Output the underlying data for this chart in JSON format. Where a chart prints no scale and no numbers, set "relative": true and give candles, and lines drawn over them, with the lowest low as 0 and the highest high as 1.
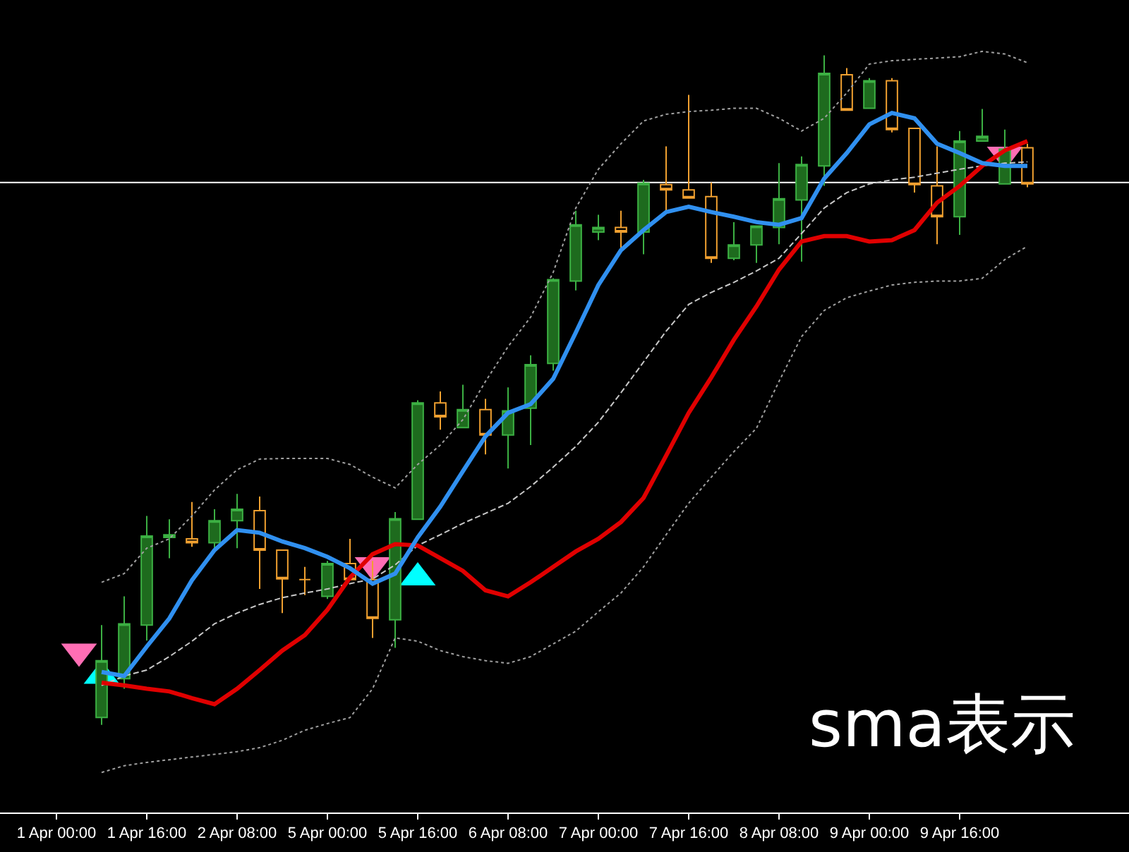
{
  "chart_data": {
    "type": "candlestick",
    "relative": true,
    "tick_labels": "x",
    "categories": [
      "1 Apr 00:00",
      null,
      null,
      null,
      "1 Apr 16:00",
      null,
      null,
      null,
      "2 Apr 08:00",
      null,
      null,
      null,
      "5 Apr 00:00",
      null,
      null,
      null,
      "5 Apr 16:00",
      null,
      null,
      null,
      "6 Apr 08:00",
      null,
      null,
      null,
      "7 Apr 00:00",
      null,
      null,
      null,
      "7 Apr 16:00",
      null,
      null,
      null,
      "8 Apr 08:00",
      null,
      null,
      null,
      "9 Apr 00:00",
      null,
      null,
      null,
      "9 Apr 16:00",
      null,
      null,
      null
    ],
    "ohlc": [
      null,
      null,
      [
        0.011,
        0.149,
        0,
        0.096
      ],
      [
        0.069,
        0.192,
        0.054,
        0.151
      ],
      [
        0.149,
        0.312,
        0.126,
        0.282
      ],
      [
        0.28,
        0.307,
        0.249,
        0.284
      ],
      [
        0.278,
        0.333,
        0.266,
        0.272
      ],
      [
        0.272,
        0.322,
        0.261,
        0.305
      ],
      [
        0.305,
        0.345,
        0.264,
        0.322
      ],
      [
        0.32,
        0.341,
        0.203,
        0.261
      ],
      [
        0.261,
        0.261,
        0.167,
        0.218
      ],
      [
        0.217,
        0.236,
        0.194,
        0.217
      ],
      [
        0.192,
        0.245,
        0.188,
        0.241
      ],
      [
        0.241,
        0.278,
        0.217,
        0.217
      ],
      [
        0.217,
        0.245,
        0.13,
        0.159
      ],
      [
        0.157,
        0.318,
        0.115,
        0.308
      ],
      [
        0.307,
        0.485,
        0.307,
        0.481
      ],
      [
        0.481,
        0.498,
        0.441,
        0.46
      ],
      [
        0.444,
        0.508,
        0.444,
        0.471
      ],
      [
        0.471,
        0.487,
        0.404,
        0.433
      ],
      [
        0.433,
        0.504,
        0.383,
        0.469
      ],
      [
        0.473,
        0.552,
        0.418,
        0.538
      ],
      [
        0.54,
        0.667,
        0.529,
        0.665
      ],
      [
        0.663,
        0.768,
        0.649,
        0.747
      ],
      [
        0.736,
        0.762,
        0.724,
        0.743
      ],
      [
        0.743,
        0.768,
        0.711,
        0.736
      ],
      [
        0.736,
        0.814,
        0.703,
        0.809
      ],
      [
        0.807,
        0.864,
        0.768,
        0.799
      ],
      [
        0.799,
        0.941,
        0.786,
        0.787
      ],
      [
        0.789,
        0.81,
        0.69,
        0.697
      ],
      [
        0.697,
        0.751,
        0.694,
        0.717
      ],
      [
        0.717,
        0.745,
        0.69,
        0.745
      ],
      [
        0.743,
        0.839,
        0.718,
        0.786
      ],
      [
        0.784,
        0.849,
        0.692,
        0.837
      ],
      [
        0.835,
        1.0,
        0.805,
        0.973
      ],
      [
        0.971,
        0.981,
        0.918,
        0.918
      ],
      [
        0.921,
        0.966,
        0.921,
        0.962
      ],
      [
        0.962,
        0.966,
        0.885,
        0.889
      ],
      [
        0.891,
        0.891,
        0.795,
        0.807
      ],
      [
        0.805,
        0.864,
        0.718,
        0.759
      ],
      [
        0.759,
        0.887,
        0.732,
        0.872
      ],
      [
        0.872,
        0.92,
        0.872,
        0.879
      ],
      [
        0.808,
        0.889,
        0.808,
        0.86
      ],
      [
        0.862,
        0.868,
        0.803,
        0.808
      ]
    ],
    "series": [
      {
        "type": "line",
        "color": "#a0a0a0",
        "line_style": "dotted",
        "values": [
          null,
          null,
          0.213,
          0.226,
          0.264,
          0.278,
          0.312,
          0.351,
          0.381,
          0.397,
          0.398,
          0.398,
          0.398,
          0.389,
          0.37,
          0.354,
          0.389,
          0.418,
          0.456,
          0.513,
          0.565,
          0.609,
          0.676,
          0.772,
          0.83,
          0.868,
          0.902,
          0.912,
          0.916,
          0.918,
          0.921,
          0.921,
          0.906,
          0.887,
          0.906,
          0.944,
          0.987,
          0.992,
          0.994,
          0.996,
          0.998,
          1.006,
          1.002,
          0.989
        ]
      },
      {
        "type": "line",
        "color": "#a0a0a0",
        "line_style": "dotted",
        "values": [
          null,
          null,
          -0.071,
          -0.061,
          -0.056,
          -0.052,
          -0.048,
          -0.044,
          -0.04,
          -0.034,
          -0.023,
          -0.008,
          0.002,
          0.011,
          0.054,
          0.13,
          0.125,
          0.111,
          0.102,
          0.096,
          0.092,
          0.102,
          0.121,
          0.14,
          0.169,
          0.197,
          0.236,
          0.284,
          0.331,
          0.37,
          0.408,
          0.443,
          0.513,
          0.58,
          0.619,
          0.638,
          0.648,
          0.657,
          0.661,
          0.663,
          0.663,
          0.667,
          0.695,
          0.715
        ]
      },
      {
        "type": "line",
        "color": "#c8c8c8",
        "line_style": "dashed",
        "values": [
          null,
          null,
          0.059,
          0.073,
          0.082,
          0.102,
          0.125,
          0.151,
          0.167,
          0.18,
          0.19,
          0.197,
          0.203,
          0.211,
          0.218,
          0.239,
          0.268,
          0.284,
          0.301,
          0.316,
          0.331,
          0.356,
          0.385,
          0.416,
          0.452,
          0.496,
          0.542,
          0.588,
          0.628,
          0.646,
          0.661,
          0.678,
          0.697,
          0.734,
          0.772,
          0.795,
          0.808,
          0.814,
          0.818,
          0.824,
          0.83,
          0.835,
          0.839,
          0.841
        ]
      },
      {
        "type": "line",
        "color": "#e00000",
        "line_style": "solid",
        "values": [
          null,
          null,
          0.063,
          0.059,
          0.054,
          0.05,
          0.04,
          0.031,
          0.054,
          0.082,
          0.111,
          0.134,
          0.172,
          0.22,
          0.255,
          0.27,
          0.268,
          0.249,
          0.23,
          0.201,
          0.192,
          0.213,
          0.236,
          0.259,
          0.278,
          0.303,
          0.339,
          0.402,
          0.466,
          0.519,
          0.575,
          0.625,
          0.68,
          0.722,
          0.73,
          0.73,
          0.722,
          0.724,
          0.739,
          0.78,
          0.805,
          0.835,
          0.858,
          0.872
        ]
      },
      {
        "type": "line",
        "color": "#3090f0",
        "line_style": "solid",
        "values": [
          null,
          null,
          0.079,
          0.073,
          0.117,
          0.159,
          0.216,
          0.261,
          0.291,
          0.287,
          0.274,
          0.264,
          0.251,
          0.234,
          0.211,
          0.226,
          0.28,
          0.326,
          0.379,
          0.431,
          0.466,
          0.479,
          0.517,
          0.586,
          0.657,
          0.709,
          0.739,
          0.766,
          0.774,
          0.766,
          0.759,
          0.751,
          0.747,
          0.757,
          0.816,
          0.854,
          0.897,
          0.914,
          0.906,
          0.868,
          0.854,
          0.839,
          0.835,
          0.835
        ]
      },
      {
        "type": "scatter",
        "color": "#00ffff",
        "marker": "triangle",
        "values": [
          null,
          null,
          0.073,
          null,
          null,
          null,
          null,
          null,
          null,
          null,
          null,
          null,
          null,
          null,
          null,
          null,
          0.22,
          null,
          null,
          null,
          null,
          null,
          null,
          null,
          null,
          null,
          null,
          null,
          null,
          null,
          null,
          null,
          null,
          null,
          null,
          null,
          null,
          null,
          null,
          null,
          null,
          null,
          null,
          null
        ]
      },
      {
        "type": "scatter",
        "color": "#ff6eb4",
        "marker": "triangle-down",
        "values": [
          null,
          0.11,
          null,
          null,
          null,
          null,
          null,
          null,
          null,
          null,
          null,
          null,
          null,
          null,
          0.239,
          null,
          null,
          null,
          null,
          null,
          null,
          null,
          null,
          null,
          null,
          null,
          null,
          null,
          null,
          null,
          null,
          null,
          null,
          null,
          null,
          null,
          null,
          null,
          null,
          null,
          null,
          null,
          0.852,
          null
        ]
      }
    ],
    "ref_lines": [
      {
        "axis": "y",
        "value": 0.81,
        "color": "#ffffff"
      }
    ],
    "annotations": [
      "sma表示"
    ]
  }
}
